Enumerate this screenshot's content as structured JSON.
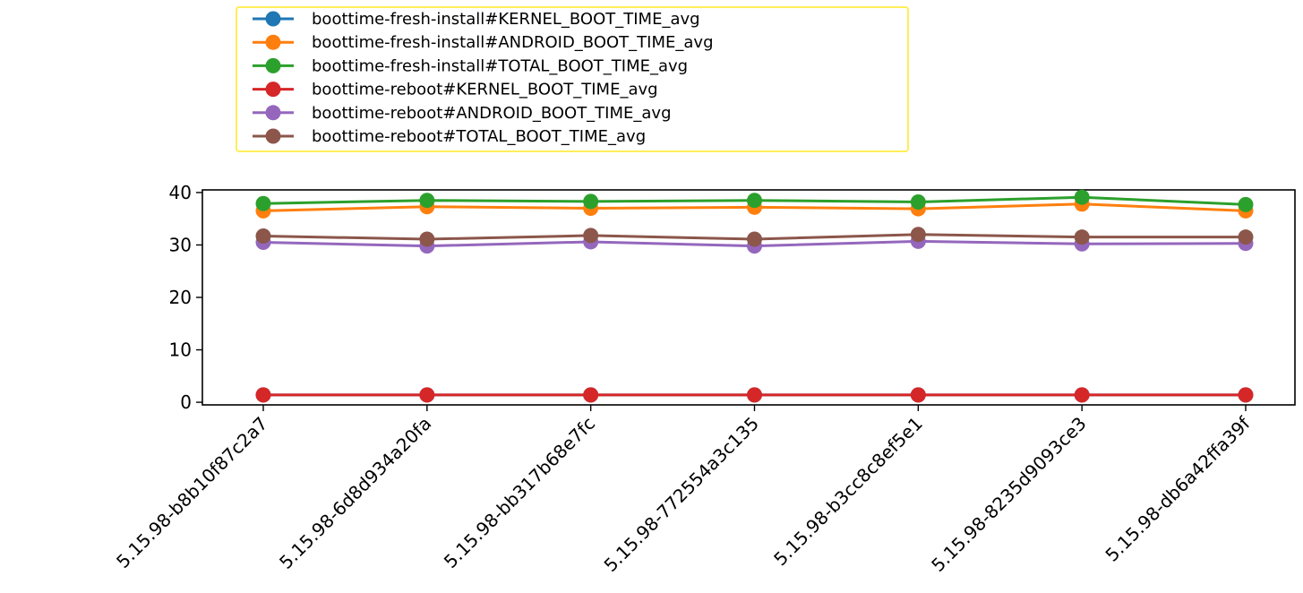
{
  "chart_data": {
    "type": "line",
    "title": "",
    "xlabel": "",
    "ylabel": "",
    "categories": [
      "5.15.98-b8b10f87c2a7",
      "5.15.98-6d8d934a20fa",
      "5.15.98-bb317b68e7fc",
      "5.15.98-772554a3c135",
      "5.15.98-b3cc8c8ef5e1",
      "5.15.98-8235d9093ce3",
      "5.15.98-db6a42ffa39f"
    ],
    "ylim": [
      -0.5,
      40.5
    ],
    "yticks": [
      0,
      10,
      20,
      30,
      40
    ],
    "grid": false,
    "legend_position": "top-left, above plot",
    "series": [
      {
        "name": "boottime-fresh-install#KERNEL_BOOT_TIME_avg",
        "color": "#1f77b4",
        "values": [
          1.4,
          1.4,
          1.4,
          1.4,
          1.4,
          1.4,
          1.4
        ]
      },
      {
        "name": "boottime-fresh-install#ANDROID_BOOT_TIME_avg",
        "color": "#ff7f0e",
        "values": [
          36.5,
          37.3,
          37.0,
          37.2,
          36.9,
          37.8,
          36.5
        ]
      },
      {
        "name": "boottime-fresh-install#TOTAL_BOOT_TIME_avg",
        "color": "#2ca02c",
        "values": [
          37.9,
          38.5,
          38.3,
          38.5,
          38.2,
          39.1,
          37.7
        ]
      },
      {
        "name": "boottime-reboot#KERNEL_BOOT_TIME_avg",
        "color": "#d62728",
        "values": [
          1.4,
          1.4,
          1.4,
          1.4,
          1.4,
          1.4,
          1.4
        ]
      },
      {
        "name": "boottime-reboot#ANDROID_BOOT_TIME_avg",
        "color": "#9467bd",
        "values": [
          30.5,
          29.8,
          30.6,
          29.8,
          30.7,
          30.2,
          30.3
        ]
      },
      {
        "name": "boottime-reboot#TOTAL_BOOT_TIME_avg",
        "color": "#8c564b",
        "values": [
          31.7,
          31.1,
          31.8,
          31.1,
          32.0,
          31.5,
          31.5
        ]
      }
    ]
  }
}
